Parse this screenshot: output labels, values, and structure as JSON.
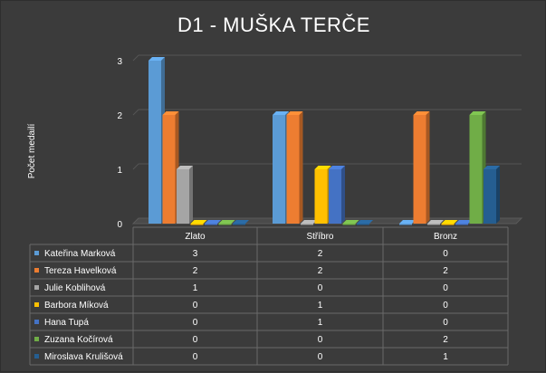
{
  "chart_data": {
    "type": "bar",
    "title": "D1 - MUŠKA TERČE",
    "ylabel": "Počet medailí",
    "xlabel": "",
    "ylim": [
      0,
      3
    ],
    "yticks": [
      0,
      1,
      2,
      3
    ],
    "grid": true,
    "legend": "data-table",
    "categories": [
      "Zlato",
      "Stříbro",
      "Bronz"
    ],
    "series": [
      {
        "name": "Kateřina Marková",
        "values": [
          3,
          2,
          0
        ],
        "color": "#5b9bd5"
      },
      {
        "name": "Tereza Havelková",
        "values": [
          2,
          2,
          2
        ],
        "color": "#ed7d31"
      },
      {
        "name": "Julie Koblihová",
        "values": [
          1,
          0,
          0
        ],
        "color": "#a5a5a5"
      },
      {
        "name": "Barbora Míková",
        "values": [
          0,
          1,
          0
        ],
        "color": "#ffc000"
      },
      {
        "name": "Hana Tupá",
        "values": [
          0,
          1,
          0
        ],
        "color": "#4472c4"
      },
      {
        "name": "Zuzana Kočírová",
        "values": [
          0,
          0,
          2
        ],
        "color": "#70ad47"
      },
      {
        "name": "Miroslava Krulišová",
        "values": [
          0,
          0,
          1
        ],
        "color": "#255e91"
      }
    ]
  }
}
